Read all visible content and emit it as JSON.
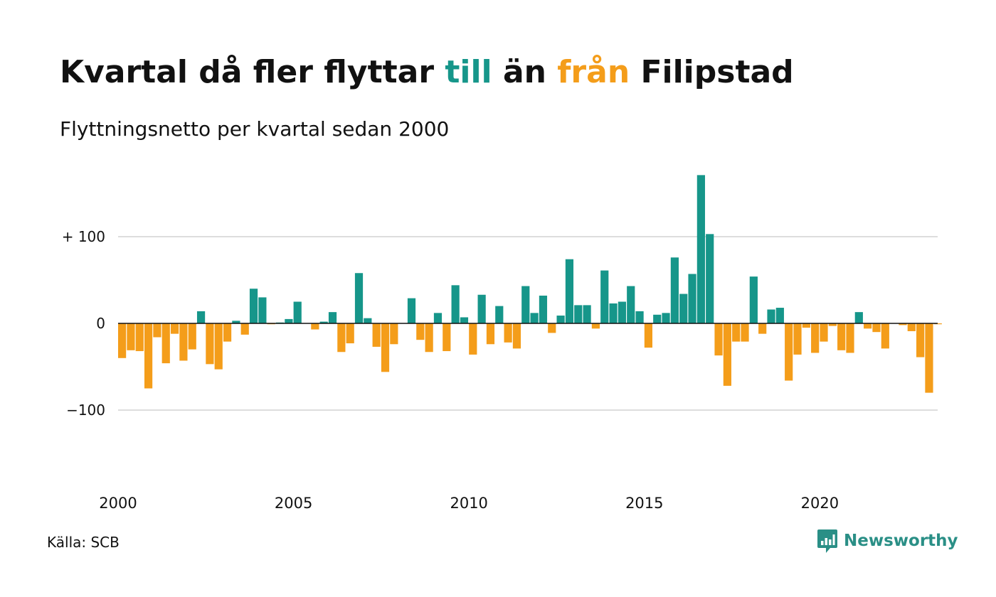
{
  "title": {
    "part1": "Kvartal då fler flyttar ",
    "till": "till",
    "part2": " än ",
    "fran": "från",
    "part3": " Filipstad"
  },
  "subtitle": "Flyttningsnetto per kvartal sedan 2000",
  "source": "Källa: SCB",
  "brand": "Newsworthy",
  "colors": {
    "positive": "#16968a",
    "negative": "#f49d1a",
    "grid": "#dddddd",
    "text": "#111111",
    "brand": "#2a8f86"
  },
  "chart_data": {
    "type": "bar",
    "title": "Kvartal då fler flyttar till än från Filipstad",
    "subtitle": "Flyttningsnetto per kvartal sedan 2000",
    "xlabel": "",
    "ylabel": "",
    "ylim": [
      -180,
      180
    ],
    "yticks": [
      {
        "value": 100,
        "label": "+ 100"
      },
      {
        "value": 0,
        "label": "0"
      },
      {
        "value": -100,
        "label": "−100"
      }
    ],
    "xticks": [
      {
        "year": 2000,
        "label": "2000"
      },
      {
        "year": 2005,
        "label": "2005"
      },
      {
        "year": 2010,
        "label": "2010"
      },
      {
        "year": 2015,
        "label": "2015"
      },
      {
        "year": 2020,
        "label": "2020"
      }
    ],
    "grid": true,
    "start_year": 2000,
    "periods_per_year": 4,
    "categories": [
      "2000 K1",
      "2000 K2",
      "2000 K3",
      "2000 K4",
      "2001 K1",
      "2001 K2",
      "2001 K3",
      "2001 K4",
      "2002 K1",
      "2002 K2",
      "2002 K3",
      "2002 K4",
      "2003 K1",
      "2003 K2",
      "2003 K3",
      "2003 K4",
      "2004 K1",
      "2004 K2",
      "2004 K3",
      "2004 K4",
      "2005 K1",
      "2005 K2",
      "2005 K3",
      "2005 K4",
      "2006 K1",
      "2006 K2",
      "2006 K3",
      "2006 K4",
      "2007 K1",
      "2007 K2",
      "2007 K3",
      "2007 K4",
      "2008 K1",
      "2008 K2",
      "2008 K3",
      "2008 K4",
      "2009 K1",
      "2009 K2",
      "2009 K3",
      "2009 K4",
      "2010 K1",
      "2010 K2",
      "2010 K3",
      "2010 K4",
      "2011 K1",
      "2011 K2",
      "2011 K3",
      "2011 K4",
      "2012 K1",
      "2012 K2",
      "2012 K3",
      "2012 K4",
      "2013 K1",
      "2013 K2",
      "2013 K3",
      "2013 K4",
      "2014 K1",
      "2014 K2",
      "2014 K3",
      "2014 K4",
      "2015 K1",
      "2015 K2",
      "2015 K3",
      "2015 K4",
      "2016 K1",
      "2016 K2",
      "2016 K3",
      "2016 K4",
      "2017 K1",
      "2017 K2",
      "2017 K3",
      "2017 K4",
      "2018 K1",
      "2018 K2",
      "2018 K3",
      "2018 K4",
      "2019 K1",
      "2019 K2",
      "2019 K3",
      "2019 K4",
      "2020 K1",
      "2020 K2",
      "2020 K3",
      "2020 K4",
      "2021 K1",
      "2021 K2",
      "2021 K3",
      "2021 K4",
      "2022 K1",
      "2022 K2",
      "2022 K3",
      "2022 K4",
      "2023 K1",
      "2023 K2"
    ],
    "values": [
      -40,
      -31,
      -32,
      -75,
      -16,
      -46,
      -12,
      -43,
      -30,
      14,
      -47,
      -53,
      -21,
      3,
      -13,
      40,
      30,
      -1,
      1,
      5,
      25,
      0,
      -7,
      2,
      13,
      -33,
      -23,
      58,
      6,
      -27,
      -56,
      -24,
      0,
      29,
      -19,
      -33,
      12,
      -32,
      44,
      7,
      -36,
      33,
      -24,
      20,
      -22,
      -29,
      43,
      12,
      32,
      -11,
      9,
      74,
      21,
      21,
      -6,
      61,
      23,
      25,
      43,
      14,
      -28,
      10,
      12,
      76,
      34,
      57,
      171,
      103,
      -37,
      -72,
      -21,
      -21,
      54,
      -12,
      16,
      18,
      -66,
      -36,
      -5,
      -34,
      -21,
      -3,
      -31,
      -34,
      13,
      -6,
      -10,
      -29,
      0,
      -2,
      -9,
      -39,
      -80,
      -1
    ]
  }
}
